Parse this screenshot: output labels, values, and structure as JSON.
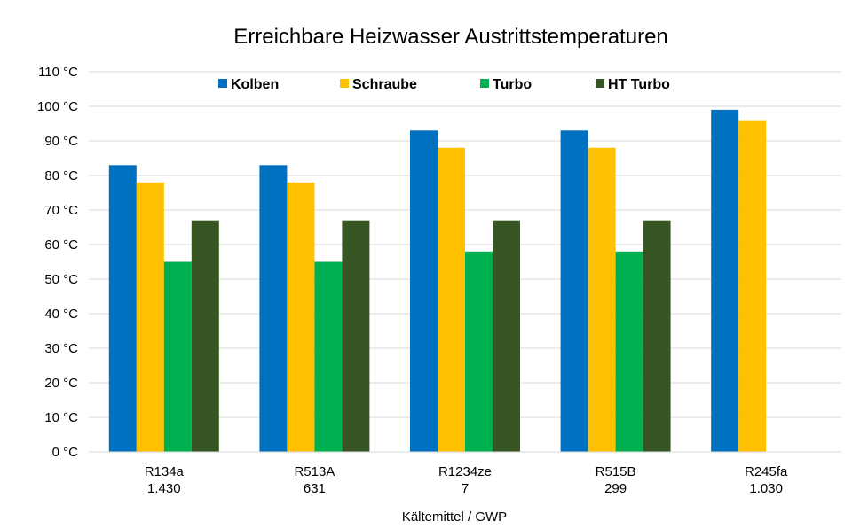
{
  "chart_data": {
    "type": "bar",
    "title": "Erreichbare Heizwasser Austrittstemperaturen",
    "xlabel": "Kältemittel / GWP",
    "ylabel": "",
    "ylim": [
      0,
      110
    ],
    "y_ticks": [
      0,
      10,
      20,
      30,
      40,
      50,
      60,
      70,
      80,
      90,
      100,
      110
    ],
    "y_tick_labels": [
      "0 °C",
      "10 °C",
      "20 °C",
      "30 °C",
      "40 °C",
      "50 °C",
      "60 °C",
      "70 °C",
      "80 °C",
      "90 °C",
      "100 °C",
      "110 °C"
    ],
    "grid": true,
    "legend_position": "top",
    "categories": [
      {
        "name": "R134a",
        "gwp": "1.430"
      },
      {
        "name": "R513A",
        "gwp": "631"
      },
      {
        "name": "R1234ze",
        "gwp": "7"
      },
      {
        "name": "R515B",
        "gwp": "299"
      },
      {
        "name": "R245fa",
        "gwp": "1.030"
      }
    ],
    "series": [
      {
        "name": "Kolben",
        "color": "#0070C0",
        "values": [
          83,
          83,
          93,
          93,
          99
        ]
      },
      {
        "name": "Schraube",
        "color": "#FFC000",
        "values": [
          78,
          78,
          88,
          88,
          96
        ]
      },
      {
        "name": "Turbo",
        "color": "#00B050",
        "values": [
          55,
          55,
          58,
          58,
          null
        ]
      },
      {
        "name": "HT Turbo",
        "color": "#375623",
        "values": [
          67,
          67,
          67,
          67,
          null
        ]
      }
    ]
  }
}
